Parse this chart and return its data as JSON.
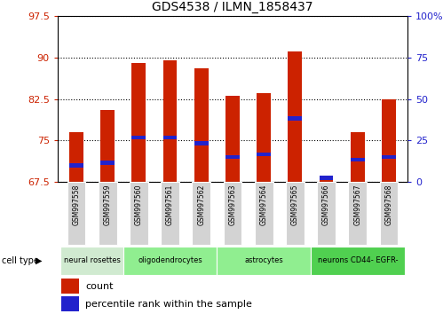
{
  "title": "GDS4538 / ILMN_1858437",
  "samples": [
    "GSM997558",
    "GSM997559",
    "GSM997560",
    "GSM997561",
    "GSM997562",
    "GSM997563",
    "GSM997564",
    "GSM997565",
    "GSM997566",
    "GSM997567",
    "GSM997568"
  ],
  "count_values": [
    76.5,
    80.5,
    89.0,
    89.5,
    88.0,
    83.0,
    83.5,
    91.0,
    68.5,
    76.5,
    82.5
  ],
  "percentile_values": [
    70.5,
    71.0,
    75.5,
    75.5,
    74.5,
    72.0,
    72.5,
    79.0,
    68.3,
    71.5,
    72.0
  ],
  "y_min": 67.5,
  "y_max": 97.5,
  "y_ticks": [
    67.5,
    75.0,
    82.5,
    90.0,
    97.5
  ],
  "right_y_ticks": [
    0,
    25,
    50,
    75,
    100
  ],
  "right_y_labels": [
    "0",
    "25",
    "50",
    "75",
    "100%"
  ],
  "cell_type_groups": [
    {
      "label": "neural rosettes",
      "start": 0,
      "end": 1,
      "color": "#c8e6c8"
    },
    {
      "label": "oligodendrocytes",
      "start": 2,
      "end": 4,
      "color": "#90ee90"
    },
    {
      "label": "astrocytes",
      "start": 5,
      "end": 7,
      "color": "#90ee90"
    },
    {
      "label": "neurons CD44- EGFR-",
      "start": 8,
      "end": 10,
      "color": "#50d050"
    }
  ],
  "bar_color": "#cc2200",
  "percentile_color": "#2222cc",
  "bar_width": 0.45,
  "tick_label_color_left": "#cc2200",
  "tick_label_color_right": "#2222cc",
  "background_xtick": "#d3d3d3",
  "legend_count_label": "count",
  "legend_percentile_label": "percentile rank within the sample",
  "perc_bar_height": 0.7
}
